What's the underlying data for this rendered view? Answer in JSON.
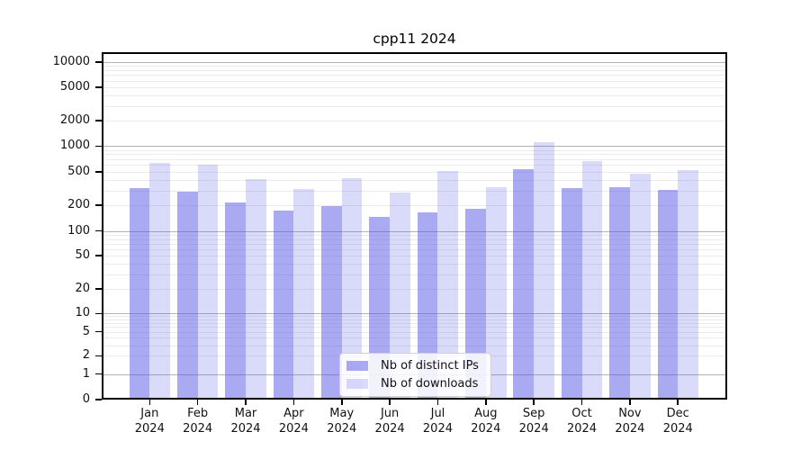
{
  "chart_data": {
    "type": "bar",
    "title": "cpp11 2024",
    "year_label": "2024",
    "categories": [
      "Jan",
      "Feb",
      "Mar",
      "Apr",
      "May",
      "Jun",
      "Jul",
      "Aug",
      "Sep",
      "Oct",
      "Nov",
      "Dec"
    ],
    "series": [
      {
        "name": "Nb of distinct IPs",
        "color": "rgba(85,85,230,0.50)",
        "values": [
          320,
          293,
          218,
          175,
          195,
          147,
          166,
          182,
          530,
          318,
          330,
          307
        ]
      },
      {
        "name": "Nb of downloads",
        "color": "rgba(85,85,230,0.22)",
        "values": [
          640,
          600,
          410,
          315,
          420,
          282,
          510,
          330,
          1100,
          665,
          477,
          520
        ]
      }
    ],
    "y_ticks": [
      0,
      1,
      2,
      5,
      10,
      20,
      50,
      100,
      200,
      500,
      1000,
      2000,
      5000,
      10000
    ],
    "y_scale": "symlog",
    "ylim": [
      0,
      13000
    ],
    "grid": true,
    "legend_position": "lower center",
    "colors": {
      "major_grid": "#b3b3b3",
      "minor_grid": "#ebebeb",
      "axis": "#000000",
      "bar_base": "#5555e6"
    }
  }
}
